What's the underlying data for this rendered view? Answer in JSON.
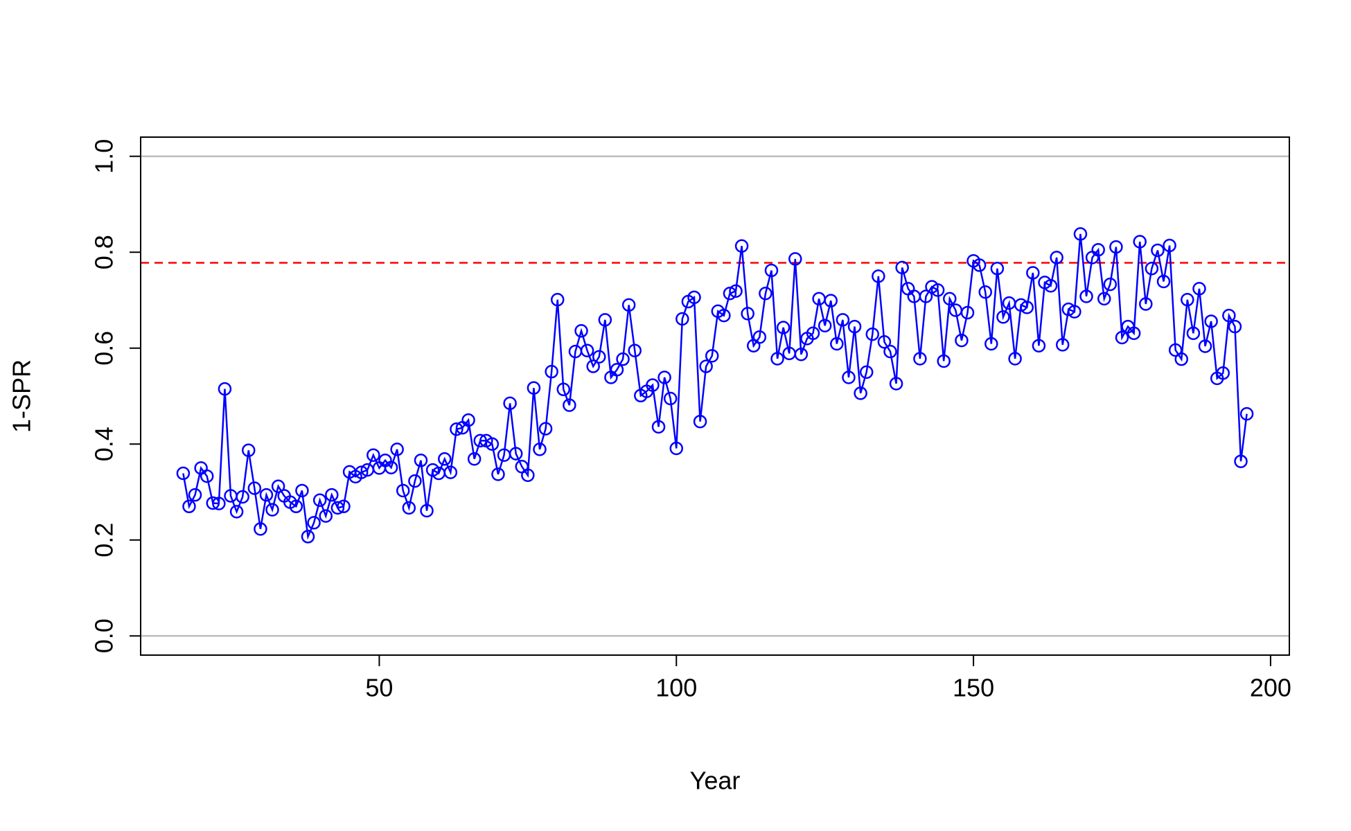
{
  "chart_data": {
    "type": "line",
    "x_label": "Year",
    "y_label": "1-SPR",
    "x": [
      17,
      18,
      19,
      20,
      21,
      22,
      23,
      24,
      25,
      26,
      27,
      28,
      29,
      30,
      31,
      32,
      33,
      34,
      35,
      36,
      37,
      38,
      39,
      40,
      41,
      42,
      43,
      44,
      45,
      46,
      47,
      48,
      49,
      50,
      51,
      52,
      53,
      54,
      55,
      56,
      57,
      58,
      59,
      60,
      61,
      62,
      63,
      64,
      65,
      66,
      67,
      68,
      69,
      70,
      71,
      72,
      73,
      74,
      75,
      76,
      77,
      78,
      79,
      80,
      81,
      82,
      83,
      84,
      85,
      86,
      87,
      88,
      89,
      90,
      91,
      92,
      93,
      94,
      95,
      96,
      97,
      98,
      99,
      100,
      101,
      102,
      103,
      104,
      105,
      106,
      107,
      108,
      109,
      110,
      111,
      112,
      113,
      114,
      115,
      116,
      117,
      118,
      119,
      120,
      121,
      122,
      123,
      124,
      125,
      126,
      127,
      128,
      129,
      130,
      131,
      132,
      133,
      134,
      135,
      136,
      137,
      138,
      139,
      140,
      141,
      142,
      143,
      144,
      145,
      146,
      147,
      148,
      149,
      150,
      151,
      152,
      153,
      154,
      155,
      156,
      157,
      158,
      159,
      160,
      161,
      162,
      163,
      164,
      165,
      166,
      167,
      168,
      169,
      170,
      171,
      172,
      173,
      174,
      175,
      176,
      177,
      178,
      179,
      180,
      181,
      182,
      183,
      184,
      185,
      186,
      187,
      188,
      189,
      190,
      191,
      192,
      193,
      194,
      195,
      196
    ],
    "series": [
      {
        "color": "#0000ff",
        "values": [
          0.339,
          0.27,
          0.294,
          0.35,
          0.333,
          0.277,
          0.276,
          0.515,
          0.292,
          0.259,
          0.29,
          0.387,
          0.308,
          0.223,
          0.294,
          0.263,
          0.312,
          0.292,
          0.279,
          0.27,
          0.303,
          0.207,
          0.236,
          0.283,
          0.25,
          0.294,
          0.267,
          0.27,
          0.342,
          0.332,
          0.341,
          0.346,
          0.377,
          0.35,
          0.366,
          0.351,
          0.389,
          0.303,
          0.267,
          0.323,
          0.366,
          0.261,
          0.346,
          0.339,
          0.369,
          0.341,
          0.431,
          0.434,
          0.45,
          0.369,
          0.407,
          0.407,
          0.4,
          0.337,
          0.377,
          0.485,
          0.38,
          0.353,
          0.335,
          0.517,
          0.389,
          0.432,
          0.551,
          0.701,
          0.514,
          0.481,
          0.593,
          0.636,
          0.595,
          0.562,
          0.582,
          0.659,
          0.539,
          0.555,
          0.577,
          0.69,
          0.595,
          0.501,
          0.51,
          0.523,
          0.436,
          0.539,
          0.495,
          0.391,
          0.661,
          0.697,
          0.706,
          0.447,
          0.562,
          0.584,
          0.677,
          0.668,
          0.714,
          0.719,
          0.813,
          0.672,
          0.605,
          0.623,
          0.714,
          0.762,
          0.578,
          0.643,
          0.589,
          0.786,
          0.587,
          0.62,
          0.631,
          0.703,
          0.647,
          0.699,
          0.609,
          0.659,
          0.539,
          0.645,
          0.506,
          0.55,
          0.629,
          0.75,
          0.613,
          0.593,
          0.526,
          0.768,
          0.724,
          0.708,
          0.578,
          0.708,
          0.728,
          0.721,
          0.573,
          0.703,
          0.679,
          0.616,
          0.674,
          0.782,
          0.773,
          0.717,
          0.609,
          0.766,
          0.665,
          0.694,
          0.578,
          0.69,
          0.685,
          0.757,
          0.605,
          0.737,
          0.73,
          0.789,
          0.607,
          0.681,
          0.676,
          0.838,
          0.708,
          0.789,
          0.805,
          0.703,
          0.733,
          0.811,
          0.622,
          0.645,
          0.631,
          0.822,
          0.692,
          0.766,
          0.804,
          0.739,
          0.814,
          0.596,
          0.577,
          0.701,
          0.631,
          0.724,
          0.604,
          0.656,
          0.537,
          0.548,
          0.668,
          0.645,
          0.364,
          0.463
        ]
      }
    ],
    "reference_lines": [
      {
        "value": 0,
        "color": "#bebebe",
        "dashed": false
      },
      {
        "value": 1,
        "color": "#bebebe",
        "dashed": false
      },
      {
        "value": 0.778,
        "color": "#ff0000",
        "dashed": true
      }
    ],
    "xlim": [
      9.84,
      203.16
    ],
    "ylim": [
      -0.04,
      1.04
    ],
    "xticks": [
      50,
      100,
      150,
      200
    ],
    "yticks": [
      {
        "value": 0,
        "label": "0.0"
      },
      {
        "value": 0.2,
        "label": "0.2"
      },
      {
        "value": 0.4,
        "label": "0.4"
      },
      {
        "value": 0.6,
        "label": "0.6"
      },
      {
        "value": 0.8,
        "label": "0.8"
      },
      {
        "value": 1,
        "label": "1.0"
      }
    ]
  }
}
